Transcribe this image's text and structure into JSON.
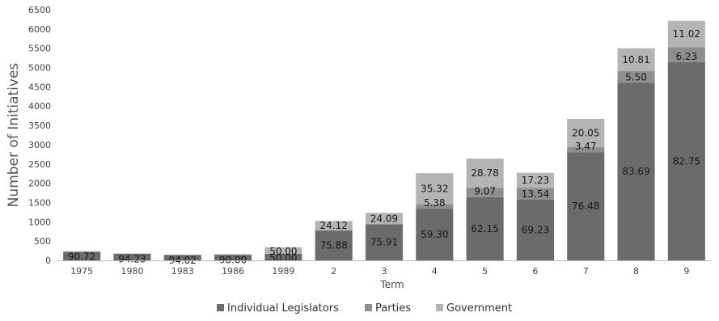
{
  "chart_data": {
    "type": "bar",
    "stacked": true,
    "title": "",
    "xlabel": "Term",
    "ylabel": "Number of Initiatives",
    "ylim": [
      0,
      6500
    ],
    "yticks": [
      0,
      500,
      1000,
      1500,
      2000,
      2500,
      3000,
      3500,
      4000,
      4500,
      5000,
      5500,
      6000,
      6500
    ],
    "grid": false,
    "legend_position": "bottom",
    "categories": [
      "1975",
      "1980",
      "1983",
      "1986",
      "1989",
      "2",
      "3",
      "4",
      "5",
      "6",
      "7",
      "8",
      "9"
    ],
    "totals": [
      240,
      180,
      150,
      160,
      340,
      1020,
      1230,
      2260,
      2640,
      2270,
      3670,
      5500,
      6210
    ],
    "series": [
      {
        "name": "Individual Legislators",
        "color": "#6b6b6b",
        "percent": [
          90.72,
          94.23,
          94.02,
          90.0,
          50.0,
          75.88,
          75.91,
          59.3,
          62.15,
          69.23,
          76.48,
          83.69,
          82.75
        ],
        "labels": [
          "90.72",
          "94.23",
          "94.02",
          "90.00",
          "50.00",
          "75.88",
          "75.91",
          "59.30",
          "62.15",
          "69.23",
          "76.48",
          "83.69",
          "82.75"
        ]
      },
      {
        "name": "Parties",
        "color": "#8e8e8e",
        "percent": [
          0,
          0,
          0,
          0,
          0,
          0,
          0,
          5.38,
          9.07,
          13.54,
          3.47,
          5.5,
          6.23
        ],
        "labels": [
          "",
          "",
          "",
          "",
          "",
          "",
          "",
          "5.38",
          "9.07",
          "13.54",
          "3.47",
          "5.50",
          "6.23"
        ]
      },
      {
        "name": "Government",
        "color": "#b4b4b4",
        "percent": [
          9.28,
          5.77,
          5.98,
          10.0,
          50.0,
          24.12,
          24.09,
          35.32,
          28.78,
          17.23,
          20.05,
          10.81,
          11.02
        ],
        "labels": [
          "",
          "",
          "",
          "",
          "50.00",
          "24.12",
          "24.09",
          "35.32",
          "28.78",
          "17.23",
          "20.05",
          "10.81",
          "11.02"
        ]
      }
    ]
  }
}
